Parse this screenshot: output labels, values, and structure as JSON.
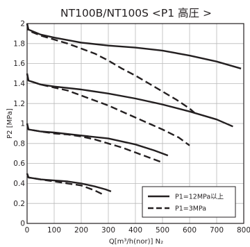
{
  "chart_data": {
    "type": "line",
    "title": "NT100B/NT100S <P1 高圧 >",
    "xlabel": "Q[m³/h(nor)] N₂",
    "ylabel": "P2 [MPa]",
    "xlim": [
      0,
      800
    ],
    "ylim": [
      0,
      2
    ],
    "xticks": [
      "0",
      "100",
      "200",
      "300",
      "400",
      "500",
      "600",
      "700",
      "800"
    ],
    "yticks": [
      "0",
      "0.2",
      "0.4",
      "0.6",
      "0.8",
      "1",
      "1.2",
      "1.4",
      "1.6",
      "1.8",
      "2"
    ],
    "grid": true,
    "legend_position": "bottom-right",
    "legend": [
      {
        "label": "P1=12MPa以上",
        "style": "solid"
      },
      {
        "label": "P1=3MPa",
        "style": "dashed"
      }
    ],
    "series": [
      {
        "group": 2.0,
        "style": "solid",
        "points": [
          [
            0,
            2.0
          ],
          [
            5,
            1.94
          ],
          [
            50,
            1.89
          ],
          [
            100,
            1.86
          ],
          [
            200,
            1.81
          ],
          [
            300,
            1.78
          ],
          [
            400,
            1.76
          ],
          [
            500,
            1.73
          ],
          [
            600,
            1.68
          ],
          [
            700,
            1.62
          ],
          [
            790,
            1.55
          ]
        ]
      },
      {
        "group": 2.0,
        "style": "dashed",
        "points": [
          [
            0,
            2.0
          ],
          [
            5,
            1.93
          ],
          [
            50,
            1.88
          ],
          [
            100,
            1.84
          ],
          [
            150,
            1.8
          ],
          [
            200,
            1.75
          ],
          [
            250,
            1.7
          ],
          [
            300,
            1.63
          ],
          [
            350,
            1.55
          ],
          [
            400,
            1.48
          ],
          [
            450,
            1.4
          ],
          [
            500,
            1.32
          ],
          [
            550,
            1.24
          ],
          [
            600,
            1.15
          ],
          [
            630,
            1.08
          ]
        ]
      },
      {
        "group": 1.5,
        "style": "solid",
        "points": [
          [
            0,
            1.5
          ],
          [
            5,
            1.43
          ],
          [
            50,
            1.39
          ],
          [
            100,
            1.37
          ],
          [
            200,
            1.34
          ],
          [
            300,
            1.3
          ],
          [
            400,
            1.25
          ],
          [
            500,
            1.19
          ],
          [
            600,
            1.12
          ],
          [
            700,
            1.04
          ],
          [
            760,
            0.97
          ]
        ]
      },
      {
        "group": 1.5,
        "style": "dashed",
        "points": [
          [
            0,
            1.5
          ],
          [
            5,
            1.43
          ],
          [
            50,
            1.39
          ],
          [
            100,
            1.36
          ],
          [
            150,
            1.33
          ],
          [
            200,
            1.28
          ],
          [
            300,
            1.18
          ],
          [
            400,
            1.06
          ],
          [
            500,
            0.94
          ],
          [
            560,
            0.86
          ],
          [
            600,
            0.78
          ]
        ]
      },
      {
        "group": 1.0,
        "style": "solid",
        "points": [
          [
            0,
            1.0
          ],
          [
            5,
            0.94
          ],
          [
            50,
            0.92
          ],
          [
            100,
            0.91
          ],
          [
            200,
            0.88
          ],
          [
            300,
            0.85
          ],
          [
            400,
            0.79
          ],
          [
            470,
            0.73
          ],
          [
            520,
            0.68
          ]
        ]
      },
      {
        "group": 1.0,
        "style": "dashed",
        "points": [
          [
            0,
            1.0
          ],
          [
            5,
            0.94
          ],
          [
            50,
            0.92
          ],
          [
            100,
            0.9
          ],
          [
            150,
            0.89
          ],
          [
            200,
            0.87
          ],
          [
            250,
            0.84
          ],
          [
            300,
            0.8
          ],
          [
            350,
            0.76
          ],
          [
            400,
            0.71
          ],
          [
            450,
            0.66
          ],
          [
            500,
            0.61
          ]
        ]
      },
      {
        "group": 0.5,
        "style": "solid",
        "points": [
          [
            0,
            0.5
          ],
          [
            5,
            0.46
          ],
          [
            50,
            0.44
          ],
          [
            100,
            0.43
          ],
          [
            150,
            0.42
          ],
          [
            200,
            0.4
          ],
          [
            250,
            0.37
          ],
          [
            290,
            0.34
          ],
          [
            310,
            0.32
          ]
        ]
      },
      {
        "group": 0.5,
        "style": "dashed",
        "points": [
          [
            0,
            0.5
          ],
          [
            5,
            0.46
          ],
          [
            50,
            0.44
          ],
          [
            100,
            0.42
          ],
          [
            150,
            0.4
          ],
          [
            200,
            0.38
          ],
          [
            250,
            0.33
          ],
          [
            280,
            0.29
          ]
        ]
      }
    ]
  }
}
